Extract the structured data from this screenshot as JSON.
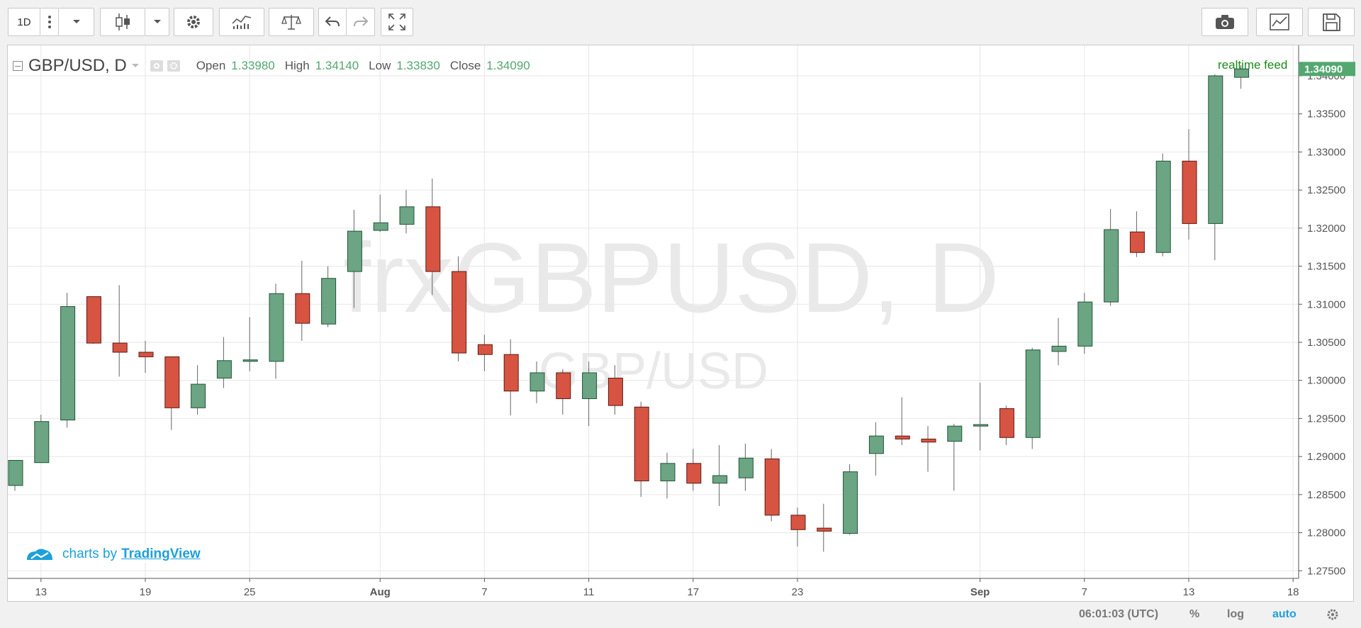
{
  "toolbar": {
    "interval": "1D",
    "icons": [
      "more-icon",
      "dropdown-icon",
      "candles-icon",
      "dropdown-icon",
      "settings-icon",
      "indicators-icon",
      "compare-icon",
      "undo-icon",
      "redo-icon",
      "fullscreen-icon",
      "camera-icon",
      "chart-icon",
      "save-icon"
    ]
  },
  "legend": {
    "symbol": "GBP/USD, D",
    "open_label": "Open",
    "open": "1.33980",
    "high_label": "High",
    "high": "1.34140",
    "low_label": "Low",
    "low": "1.33830",
    "close_label": "Close",
    "close": "1.34090"
  },
  "watermark": {
    "main": "frxGBPUSD, D",
    "sub": "GBP/USD"
  },
  "realtime": "realtime feed",
  "price_badge": "1.34090",
  "branding": {
    "prefix": "charts by",
    "link": "TradingView"
  },
  "footer": {
    "time": "06:01:03 (UTC)",
    "percent": "%",
    "log": "log",
    "auto": "auto"
  },
  "colors": {
    "up": "#6ba583",
    "down": "#d75442",
    "up_border": "#225437",
    "down_border": "#5b1a13",
    "badge": "#53a76f",
    "accent": "#1ea0d9"
  },
  "chart_data": {
    "type": "candlestick",
    "ylim": [
      1.274,
      1.344
    ],
    "y_ticks": [
      "1.27500",
      "1.28000",
      "1.28500",
      "1.29000",
      "1.29500",
      "1.30000",
      "1.30500",
      "1.31000",
      "1.31500",
      "1.32000",
      "1.32500",
      "1.33000",
      "1.33500",
      "1.34000"
    ],
    "x_ticks": [
      {
        "label": "13",
        "i": 1
      },
      {
        "label": "19",
        "i": 5
      },
      {
        "label": "25",
        "i": 9
      },
      {
        "label": "Aug",
        "i": 14
      },
      {
        "label": "7",
        "i": 18
      },
      {
        "label": "11",
        "i": 22
      },
      {
        "label": "17",
        "i": 26
      },
      {
        "label": "23",
        "i": 30
      },
      {
        "label": "Sep",
        "i": 37
      },
      {
        "label": "7",
        "i": 41
      },
      {
        "label": "13",
        "i": 45
      },
      {
        "label": "18",
        "i": 49
      }
    ],
    "candles": [
      {
        "o": 1.2862,
        "h": 1.2895,
        "l": 1.2855,
        "c": 1.2895
      },
      {
        "o": 1.2892,
        "h": 1.2955,
        "l": 1.2892,
        "c": 1.2946
      },
      {
        "o": 1.2948,
        "h": 1.3115,
        "l": 1.2938,
        "c": 1.3097
      },
      {
        "o": 1.311,
        "h": 1.311,
        "l": 1.3048,
        "c": 1.3049
      },
      {
        "o": 1.3049,
        "h": 1.3125,
        "l": 1.3005,
        "c": 1.3037
      },
      {
        "o": 1.3037,
        "h": 1.3052,
        "l": 1.301,
        "c": 1.3031
      },
      {
        "o": 1.3031,
        "h": 1.3031,
        "l": 1.2935,
        "c": 1.2964
      },
      {
        "o": 1.2964,
        "h": 1.302,
        "l": 1.2955,
        "c": 1.2995
      },
      {
        "o": 1.3003,
        "h": 1.3057,
        "l": 1.299,
        "c": 1.3026
      },
      {
        "o": 1.3025,
        "h": 1.3083,
        "l": 1.3012,
        "c": 1.3027
      },
      {
        "o": 1.3025,
        "h": 1.3127,
        "l": 1.3002,
        "c": 1.3114
      },
      {
        "o": 1.3114,
        "h": 1.3157,
        "l": 1.3052,
        "c": 1.3075
      },
      {
        "o": 1.3074,
        "h": 1.315,
        "l": 1.307,
        "c": 1.3134
      },
      {
        "o": 1.3143,
        "h": 1.3224,
        "l": 1.3095,
        "c": 1.3196
      },
      {
        "o": 1.3197,
        "h": 1.3244,
        "l": 1.3195,
        "c": 1.3207
      },
      {
        "o": 1.3205,
        "h": 1.325,
        "l": 1.3193,
        "c": 1.3228
      },
      {
        "o": 1.3228,
        "h": 1.3265,
        "l": 1.3112,
        "c": 1.3143
      },
      {
        "o": 1.3143,
        "h": 1.3163,
        "l": 1.3025,
        "c": 1.3036
      },
      {
        "o": 1.3047,
        "h": 1.306,
        "l": 1.3012,
        "c": 1.3034
      },
      {
        "o": 1.3034,
        "h": 1.3054,
        "l": 1.2954,
        "c": 1.2986
      },
      {
        "o": 1.2986,
        "h": 1.3025,
        "l": 1.297,
        "c": 1.301
      },
      {
        "o": 1.301,
        "h": 1.3015,
        "l": 1.2955,
        "c": 1.2976
      },
      {
        "o": 1.2976,
        "h": 1.3025,
        "l": 1.294,
        "c": 1.301
      },
      {
        "o": 1.3003,
        "h": 1.302,
        "l": 1.2955,
        "c": 1.2967
      },
      {
        "o": 1.2965,
        "h": 1.2972,
        "l": 1.2847,
        "c": 1.2868
      },
      {
        "o": 1.2868,
        "h": 1.2905,
        "l": 1.2845,
        "c": 1.2891
      },
      {
        "o": 1.2891,
        "h": 1.291,
        "l": 1.2855,
        "c": 1.2865
      },
      {
        "o": 1.2865,
        "h": 1.2915,
        "l": 1.2835,
        "c": 1.2875
      },
      {
        "o": 1.2872,
        "h": 1.2917,
        "l": 1.2855,
        "c": 1.2898
      },
      {
        "o": 1.2897,
        "h": 1.291,
        "l": 1.2815,
        "c": 1.2823
      },
      {
        "o": 1.2823,
        "h": 1.2833,
        "l": 1.2782,
        "c": 1.2804
      },
      {
        "o": 1.2806,
        "h": 1.2838,
        "l": 1.2775,
        "c": 1.2802
      },
      {
        "o": 1.2799,
        "h": 1.289,
        "l": 1.2797,
        "c": 1.288
      },
      {
        "o": 1.2904,
        "h": 1.2945,
        "l": 1.2875,
        "c": 1.2927
      },
      {
        "o": 1.2927,
        "h": 1.2978,
        "l": 1.2915,
        "c": 1.2923
      },
      {
        "o": 1.2923,
        "h": 1.294,
        "l": 1.288,
        "c": 1.2919
      },
      {
        "o": 1.292,
        "h": 1.2943,
        "l": 1.2855,
        "c": 1.294
      },
      {
        "o": 1.294,
        "h": 1.2997,
        "l": 1.2908,
        "c": 1.2942
      },
      {
        "o": 1.2963,
        "h": 1.2967,
        "l": 1.2915,
        "c": 1.2925
      },
      {
        "o": 1.2925,
        "h": 1.3043,
        "l": 1.291,
        "c": 1.304
      },
      {
        "o": 1.3038,
        "h": 1.3082,
        "l": 1.302,
        "c": 1.3045
      },
      {
        "o": 1.3045,
        "h": 1.3115,
        "l": 1.3035,
        "c": 1.3103
      },
      {
        "o": 1.3103,
        "h": 1.3225,
        "l": 1.3098,
        "c": 1.3198
      },
      {
        "o": 1.3195,
        "h": 1.3222,
        "l": 1.3162,
        "c": 1.3168
      },
      {
        "o": 1.3168,
        "h": 1.3298,
        "l": 1.3163,
        "c": 1.3288
      },
      {
        "o": 1.3288,
        "h": 1.333,
        "l": 1.3185,
        "c": 1.3206
      },
      {
        "o": 1.3206,
        "h": 1.3402,
        "l": 1.3158,
        "c": 1.34
      },
      {
        "o": 1.3398,
        "h": 1.3414,
        "l": 1.3383,
        "c": 1.3409
      }
    ]
  }
}
